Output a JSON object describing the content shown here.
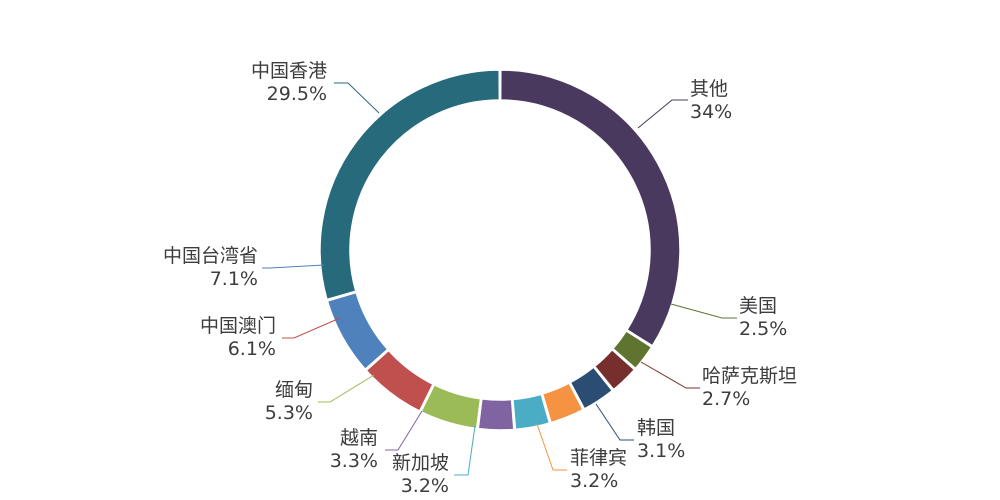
{
  "chart_data": {
    "type": "pie",
    "donut": true,
    "title": "",
    "start": "top, clockwise",
    "slices": [
      {
        "label": "其他",
        "value": 34.0,
        "value_text": "34%",
        "color": "#4a395f"
      },
      {
        "label": "美国",
        "value": 2.5,
        "value_text": "2.5%",
        "color": "#5e742f"
      },
      {
        "label": "哈萨克斯坦",
        "value": 2.7,
        "value_text": "2.7%",
        "color": "#772f2d"
      },
      {
        "label": "韩国",
        "value": 3.1,
        "value_text": "3.1%",
        "color": "#2c4d73"
      },
      {
        "label": "菲律宾",
        "value": 3.2,
        "value_text": "3.2%",
        "color": "#f59342"
      },
      {
        "label": "新加坡",
        "value": 3.2,
        "value_text": "3.2%",
        "color": "#4bacc6"
      },
      {
        "label": "越南",
        "value": 3.3,
        "value_text": "3.3%",
        "color": "#8064a2"
      },
      {
        "label": "缅甸",
        "value": 5.3,
        "value_text": "5.3%",
        "color": "#9bbb59"
      },
      {
        "label": "中国澳门",
        "value": 6.1,
        "value_text": "6.1%",
        "color": "#c0504d"
      },
      {
        "label": "中国台湾省",
        "value": 7.1,
        "value_text": "7.1%",
        "color": "#4f81bd"
      },
      {
        "label": "中国香港",
        "value": 29.5,
        "value_text": "29.5%",
        "color": "#266a7b"
      }
    ]
  }
}
